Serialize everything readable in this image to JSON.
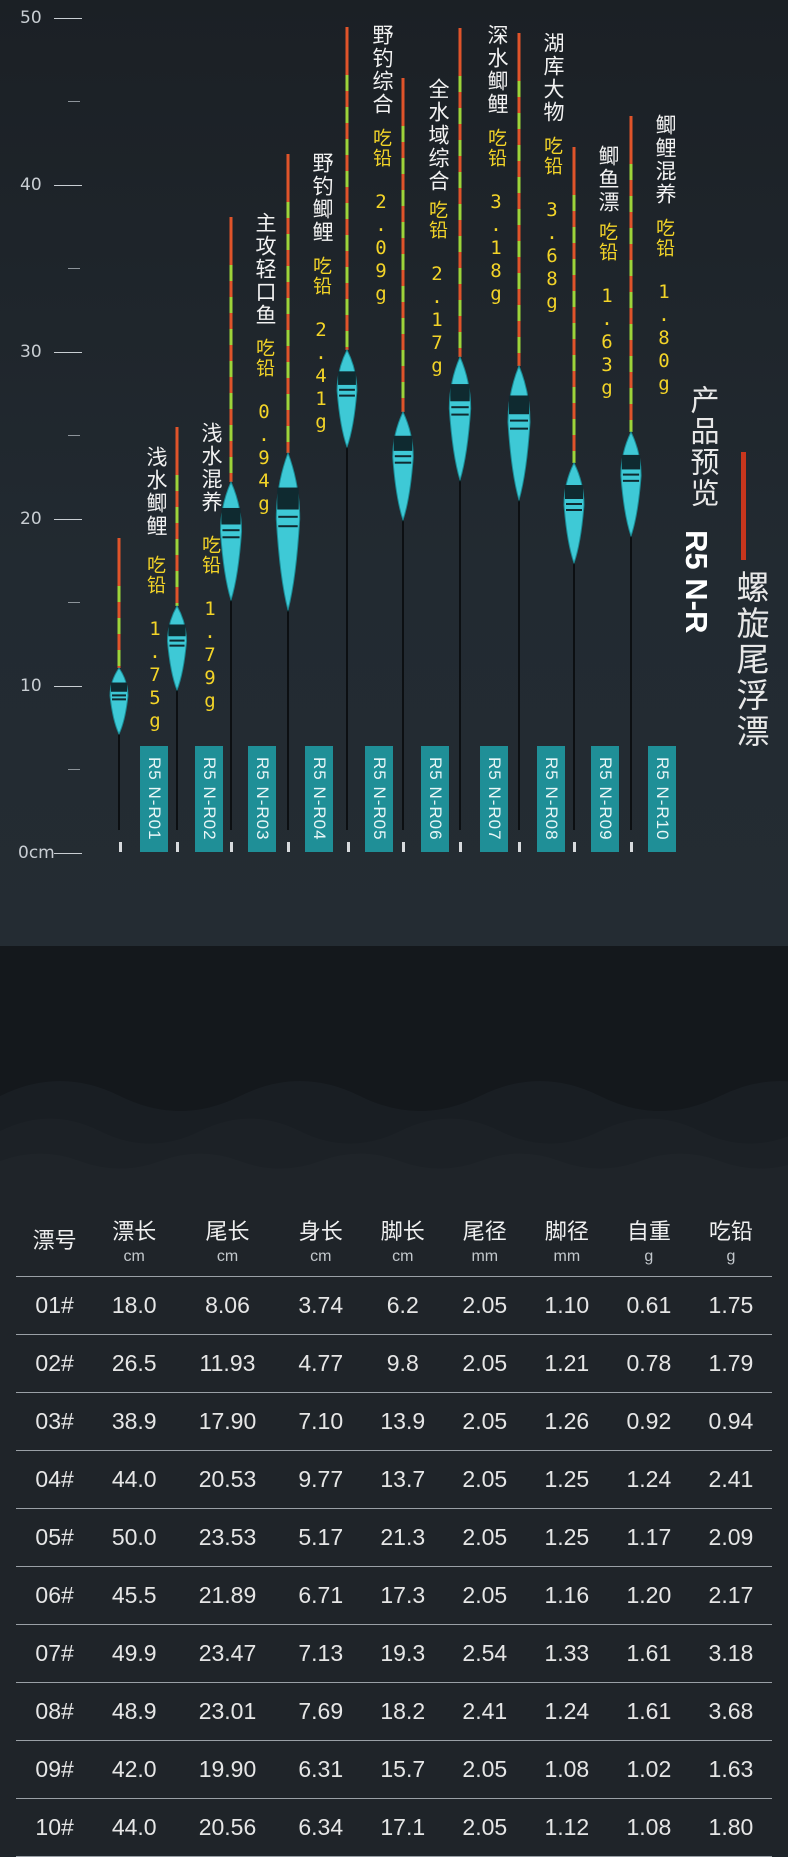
{
  "chart": {
    "axis_ticks": [
      "50",
      "40",
      "30",
      "20",
      "10",
      "0cm"
    ]
  },
  "floats": [
    {
      "name": "浅水鲫鲤",
      "lead": "吃铅 1.75g",
      "model": "R5 N-R01"
    },
    {
      "name": "浅水混养",
      "lead": "吃铅 1.79g",
      "model": "R5 N-R02"
    },
    {
      "name": "主攻轻口鱼",
      "lead": "吃铅 0.94g",
      "model": "R5 N-R03"
    },
    {
      "name": "野钓鲫鲤",
      "lead": "吃铅 2.41g",
      "model": "R5 N-R04"
    },
    {
      "name": "野钓综合",
      "lead": "吃铅 2.09g",
      "model": "R5 N-R05"
    },
    {
      "name": "全水域综合",
      "lead": "吃铅 2.17g",
      "model": "R5 N-R06"
    },
    {
      "name": "深水鲫鲤",
      "lead": "吃铅 3.18g",
      "model": "R5 N-R07"
    },
    {
      "name": "湖库大物",
      "lead": "吃铅 3.68g",
      "model": "R5 N-R08"
    },
    {
      "name": "鲫鱼漂",
      "lead": "吃铅 1.63g",
      "model": "R5 N-R09"
    },
    {
      "name": "鲫鲤混养",
      "lead": "吃铅 1.80g",
      "model": "R5 N-R10"
    }
  ],
  "product": {
    "label": "产品预览",
    "model": "R5 N-R",
    "name": "螺旋尾浮漂"
  },
  "spec_table": {
    "headers": [
      {
        "label": "漂号",
        "unit": ""
      },
      {
        "label": "漂长",
        "unit": "cm"
      },
      {
        "label": "尾长",
        "unit": "cm"
      },
      {
        "label": "身长",
        "unit": "cm"
      },
      {
        "label": "脚长",
        "unit": "cm"
      },
      {
        "label": "尾径",
        "unit": "mm"
      },
      {
        "label": "脚径",
        "unit": "mm"
      },
      {
        "label": "自重",
        "unit": "g"
      },
      {
        "label": "吃铅",
        "unit": "g"
      }
    ],
    "rows": [
      [
        "01#",
        "18.0",
        "8.06",
        "3.74",
        "6.2",
        "2.05",
        "1.10",
        "0.61",
        "1.75"
      ],
      [
        "02#",
        "26.5",
        "11.93",
        "4.77",
        "9.8",
        "2.05",
        "1.21",
        "0.78",
        "1.79"
      ],
      [
        "03#",
        "38.9",
        "17.90",
        "7.10",
        "13.9",
        "2.05",
        "1.26",
        "0.92",
        "0.94"
      ],
      [
        "04#",
        "44.0",
        "20.53",
        "9.77",
        "13.7",
        "2.05",
        "1.25",
        "1.24",
        "2.41"
      ],
      [
        "05#",
        "50.0",
        "23.53",
        "5.17",
        "21.3",
        "2.05",
        "1.25",
        "1.17",
        "2.09"
      ],
      [
        "06#",
        "45.5",
        "21.89",
        "6.71",
        "17.3",
        "2.05",
        "1.16",
        "1.20",
        "2.17"
      ],
      [
        "07#",
        "49.9",
        "23.47",
        "7.13",
        "19.3",
        "2.54",
        "1.33",
        "1.61",
        "3.18"
      ],
      [
        "08#",
        "48.9",
        "23.01",
        "7.69",
        "18.2",
        "2.41",
        "1.24",
        "1.61",
        "3.68"
      ],
      [
        "09#",
        "42.0",
        "19.90",
        "6.31",
        "15.7",
        "2.05",
        "1.08",
        "1.02",
        "1.63"
      ],
      [
        "10#",
        "44.0",
        "20.56",
        "6.34",
        "17.1",
        "2.05",
        "1.12",
        "1.08",
        "1.80"
      ]
    ]
  },
  "colors": {
    "float_body": "#3ec9d6",
    "tail_red": "#e0542a",
    "tail_green": "#9ed43a",
    "tag_bg": "#1f8f97",
    "lead_text": "#f3d428",
    "accent_red": "#c8361d"
  }
}
